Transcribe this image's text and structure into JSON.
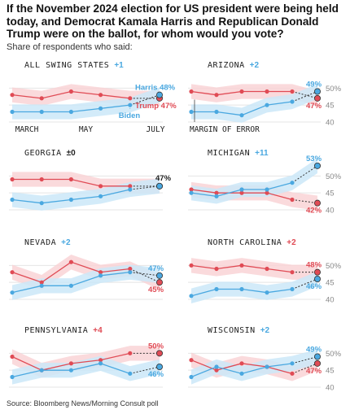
{
  "title": "If the November 2024 election for US president were being held today, and Democrat Kamala Harris and Republican Donald Trump were on the ballot, for whom would you vote?",
  "subtitle": "Share of respondents who said:",
  "source": "Source: Bloomberg News/Morning Consult poll",
  "colors": {
    "harris": "#4aa8e0",
    "trump": "#e04b55",
    "harris_band": "#cbe8f8",
    "trump_band": "#f9d3d6",
    "change_blue": "#4aa8e0",
    "change_red": "#e04b55",
    "even": "#222222"
  },
  "annotations": {
    "biden_label": "Biden",
    "margin_label": "MARGIN OF ERROR",
    "month_labels": [
      "MARCH",
      "MAY",
      "JULY"
    ]
  },
  "chart_data": {
    "type": "line",
    "ylim": [
      40,
      52
    ],
    "yticks": [
      40,
      45,
      50
    ],
    "ytick_labels": [
      "40",
      "45",
      "50%"
    ],
    "panels": [
      {
        "state": "ALL SWING STATES",
        "change": "+1",
        "lead": "harris",
        "harris": [
          43,
          43,
          43,
          44,
          45,
          48
        ],
        "trump": [
          48,
          47,
          49,
          48,
          47,
          47
        ],
        "harris_label": "Harris 48%",
        "trump_label": "Trump 47%"
      },
      {
        "state": "ARIZONA",
        "change": "+2",
        "lead": "harris",
        "harris": [
          43,
          43,
          42,
          45,
          46,
          49
        ],
        "trump": [
          49,
          48,
          49,
          49,
          49,
          47
        ],
        "harris_label": "49%",
        "trump_label": "47%"
      },
      {
        "state": "GEORGIA",
        "change": "±0",
        "lead": "even",
        "harris": [
          43,
          42,
          43,
          44,
          46,
          47
        ],
        "trump": [
          49,
          49,
          49,
          47,
          47,
          47
        ],
        "harris_label": "",
        "trump_label": "47%"
      },
      {
        "state": "MICHIGAN",
        "change": "+11",
        "lead": "harris",
        "harris": [
          45,
          44,
          46,
          46,
          48,
          53
        ],
        "trump": [
          46,
          45,
          45,
          45,
          43,
          42
        ],
        "harris_label": "53%",
        "trump_label": "42%"
      },
      {
        "state": "NEVADA",
        "change": "+2",
        "lead": "harris",
        "harris": [
          42,
          44,
          44,
          47,
          48,
          47
        ],
        "trump": [
          48,
          45,
          51,
          48,
          49,
          45
        ],
        "harris_label": "47%",
        "trump_label": "45%"
      },
      {
        "state": "NORTH CAROLINA",
        "change": "+2",
        "lead": "trump",
        "harris": [
          41,
          43,
          43,
          42,
          43,
          46
        ],
        "trump": [
          50,
          49,
          50,
          49,
          48,
          48
        ],
        "harris_label": "46%",
        "trump_label": "48%"
      },
      {
        "state": "PENNSYLVANIA",
        "change": "+4",
        "lead": "trump",
        "harris": [
          43,
          45,
          45,
          47,
          44,
          46
        ],
        "trump": [
          49,
          45,
          47,
          48,
          50,
          50
        ],
        "harris_label": "46%",
        "trump_label": "50%"
      },
      {
        "state": "WISCONSIN",
        "change": "+2",
        "lead": "harris",
        "harris": [
          43,
          46,
          44,
          46,
          47,
          49
        ],
        "trump": [
          48,
          45,
          47,
          46,
          44,
          47
        ],
        "harris_label": "49%",
        "trump_label": "47%"
      }
    ]
  }
}
